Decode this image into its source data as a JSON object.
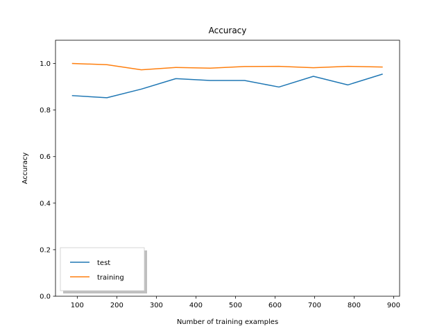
{
  "chart_data": {
    "type": "line",
    "title": "Accuracy",
    "xlabel": "Number of training examples",
    "ylabel": "Accuracy",
    "xlim": [
      45,
      915
    ],
    "ylim": [
      0.0,
      1.1
    ],
    "xticks": [
      100,
      200,
      300,
      400,
      500,
      600,
      700,
      800,
      900
    ],
    "yticks": [
      0.0,
      0.2,
      0.4,
      0.6,
      0.8,
      1.0
    ],
    "ytick_labels": [
      "0.0",
      "0.2",
      "0.4",
      "0.6",
      "0.8",
      "1.0"
    ],
    "grid": false,
    "legend": "lower-left",
    "x": [
      88,
      175,
      262,
      349,
      436,
      523,
      610,
      697,
      784,
      871
    ],
    "series": [
      {
        "name": "test",
        "color": "#1f77b4",
        "values": [
          0.862,
          0.853,
          0.89,
          0.935,
          0.927,
          0.927,
          0.899,
          0.945,
          0.908,
          0.954
        ]
      },
      {
        "name": "training",
        "color": "#ff7f0e",
        "values": [
          1.0,
          0.995,
          0.973,
          0.983,
          0.98,
          0.987,
          0.988,
          0.982,
          0.988,
          0.985
        ]
      }
    ]
  }
}
